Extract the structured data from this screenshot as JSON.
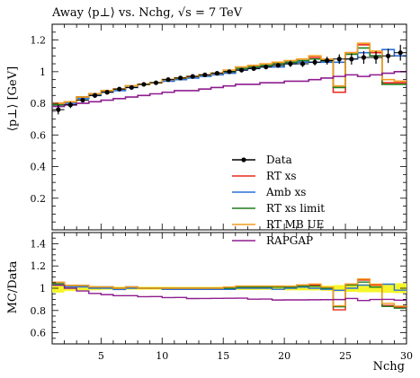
{
  "chart_data": {
    "type": "line",
    "title": "Away ⟨p⊥⟩ vs. Nchg, √s = 7 TeV",
    "xlabel": "Nchg",
    "ylabel": "⟨p⊥⟩ [GeV]",
    "ratio_ylabel": "MC/Data",
    "xlim": [
      1,
      30
    ],
    "ylim": [
      0,
      1.3
    ],
    "ratio_ylim": [
      0.5,
      1.5
    ],
    "xticks": [
      "5",
      "10",
      "15",
      "20",
      "25",
      "30"
    ],
    "yticks": [
      "0.2",
      "0.4",
      "0.6",
      "0.8",
      "1",
      "1.2"
    ],
    "ratio_yticks": [
      "0.6",
      "0.8",
      "1",
      "1.2",
      "1.4"
    ],
    "legend_position": "center-right",
    "data": {
      "name": "Data",
      "x": [
        1.5,
        2.5,
        3.5,
        4.5,
        5.5,
        6.5,
        7.5,
        8.5,
        9.5,
        10.5,
        11.5,
        12.5,
        13.5,
        14.5,
        15.5,
        16.5,
        17.5,
        18.5,
        19.5,
        20.5,
        21.5,
        22.5,
        23.5,
        24.5,
        25.5,
        26.5,
        27.5,
        28.5,
        29.5
      ],
      "y": [
        0.76,
        0.79,
        0.82,
        0.85,
        0.87,
        0.89,
        0.9,
        0.92,
        0.93,
        0.95,
        0.96,
        0.97,
        0.98,
        0.99,
        1.0,
        1.01,
        1.02,
        1.03,
        1.04,
        1.05,
        1.05,
        1.06,
        1.07,
        1.08,
        1.08,
        1.09,
        1.09,
        1.1,
        1.12
      ],
      "err": [
        0.03,
        0.02,
        0.015,
        0.015,
        0.012,
        0.012,
        0.012,
        0.012,
        0.012,
        0.012,
        0.012,
        0.012,
        0.012,
        0.012,
        0.012,
        0.015,
        0.015,
        0.015,
        0.015,
        0.02,
        0.02,
        0.02,
        0.025,
        0.03,
        0.035,
        0.04,
        0.04,
        0.045,
        0.05
      ]
    },
    "series": [
      {
        "name": "RT xs",
        "color": "#e8281e",
        "values": [
          0.8,
          0.81,
          0.84,
          0.86,
          0.88,
          0.89,
          0.91,
          0.92,
          0.93,
          0.95,
          0.96,
          0.97,
          0.98,
          0.99,
          1.0,
          1.02,
          1.03,
          1.04,
          1.05,
          1.06,
          1.08,
          1.09,
          1.07,
          0.87,
          1.12,
          1.17,
          1.12,
          0.93,
          0.93
        ]
      },
      {
        "name": "Amb xs",
        "color": "#2a6fd8",
        "values": [
          0.79,
          0.8,
          0.83,
          0.85,
          0.87,
          0.88,
          0.9,
          0.92,
          0.93,
          0.94,
          0.95,
          0.96,
          0.97,
          0.98,
          0.99,
          1.01,
          1.02,
          1.03,
          1.03,
          1.05,
          1.06,
          1.06,
          1.06,
          1.06,
          1.08,
          1.12,
          1.1,
          1.14,
          1.1
        ]
      },
      {
        "name": "RT xs limit",
        "color": "#1e7d1e",
        "values": [
          0.79,
          0.81,
          0.84,
          0.86,
          0.88,
          0.89,
          0.91,
          0.92,
          0.93,
          0.95,
          0.96,
          0.97,
          0.98,
          0.99,
          1.0,
          1.02,
          1.03,
          1.04,
          1.05,
          1.06,
          1.07,
          1.08,
          1.07,
          0.9,
          1.11,
          1.15,
          1.1,
          0.92,
          0.92
        ]
      },
      {
        "name": "RT MB UE",
        "color": "#f39c1e",
        "values": [
          0.8,
          0.81,
          0.84,
          0.86,
          0.88,
          0.89,
          0.91,
          0.92,
          0.93,
          0.95,
          0.96,
          0.97,
          0.98,
          0.99,
          1.01,
          1.03,
          1.04,
          1.05,
          1.06,
          1.07,
          1.08,
          1.1,
          1.08,
          0.91,
          1.12,
          1.18,
          1.13,
          0.95,
          0.94
        ]
      },
      {
        "name": "RAPGAP",
        "color": "#8e1c8e",
        "values": [
          0.78,
          0.79,
          0.8,
          0.81,
          0.82,
          0.83,
          0.84,
          0.85,
          0.86,
          0.87,
          0.88,
          0.88,
          0.89,
          0.9,
          0.91,
          0.92,
          0.92,
          0.93,
          0.93,
          0.94,
          0.94,
          0.95,
          0.96,
          0.97,
          0.98,
          0.97,
          0.98,
          0.99,
          1.0
        ]
      }
    ]
  }
}
